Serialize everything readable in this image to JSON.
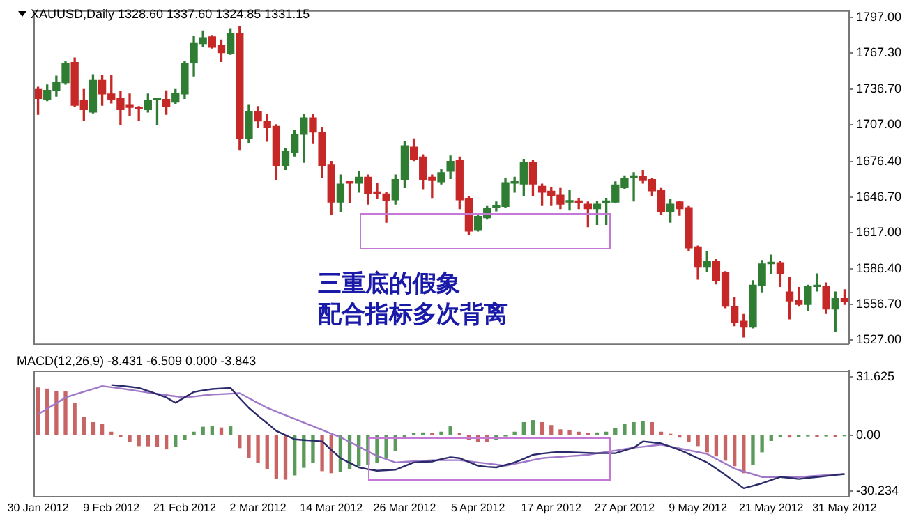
{
  "chart_data": [
    {
      "type": "candlestick",
      "title": "XAUUSD,Daily 1328.60 1337.60 1324.85 1331.15",
      "annotations": [
        "三重底的假象",
        "配合指标多次背离"
      ],
      "categories": [
        null,
        null,
        null,
        null,
        null,
        null,
        null,
        null,
        null,
        null,
        null,
        null,
        null,
        null,
        null,
        null,
        null,
        null,
        null,
        null,
        null,
        null,
        null,
        null,
        null,
        null,
        null,
        null,
        null,
        null,
        null,
        null,
        null,
        null,
        null,
        null,
        null,
        null,
        null,
        null,
        null,
        null,
        null,
        null,
        null,
        null,
        null,
        null,
        null,
        null,
        null,
        null,
        null,
        null,
        null,
        null,
        null,
        null,
        null,
        null,
        null,
        null,
        null,
        null,
        null,
        null,
        null,
        null,
        null,
        null,
        null,
        null,
        null,
        null,
        null,
        null,
        null,
        null,
        null,
        null,
        null,
        null,
        null,
        null,
        null,
        null,
        null,
        null,
        null
      ],
      "ohlc": [
        [
          1736.7,
          1738.6,
          1716.0,
          1729.2
        ],
        [
          1728.4,
          1740.5,
          1727.3,
          1736.0
        ],
        [
          1735.6,
          1748.0,
          1731.1,
          1742.4
        ],
        [
          1742.4,
          1760.1,
          1741.2,
          1758.6
        ],
        [
          1759.3,
          1763.1,
          1722.4,
          1723.5
        ],
        [
          1727.3,
          1736.7,
          1711.1,
          1719.8
        ],
        [
          1717.9,
          1749.2,
          1717.1,
          1744.3
        ],
        [
          1744.3,
          1748.8,
          1723.5,
          1733.0
        ],
        [
          1733.0,
          1748.8,
          1725.4,
          1728.4
        ],
        [
          1729.2,
          1734.8,
          1707.3,
          1719.8
        ],
        [
          1723.5,
          1733.0,
          1714.9,
          1721.7
        ],
        [
          1721.3,
          1722.4,
          1711.1,
          1720.9
        ],
        [
          1719.8,
          1733.0,
          1717.9,
          1727.3
        ],
        [
          1728.1,
          1729.2,
          1707.3,
          1728.4
        ],
        [
          1728.4,
          1735.6,
          1716.0,
          1722.4
        ],
        [
          1726.2,
          1736.7,
          1724.7,
          1733.7
        ],
        [
          1733.0,
          1760.1,
          1729.2,
          1758.2
        ],
        [
          1759.3,
          1781.2,
          1748.0,
          1775.2
        ],
        [
          1775.2,
          1785.7,
          1772.5,
          1780.0
        ],
        [
          1780.8,
          1781.9,
          1771.4,
          1772.1
        ],
        [
          1773.6,
          1778.2,
          1760.1,
          1767.6
        ],
        [
          1766.9,
          1787.6,
          1766.1,
          1783.8
        ],
        [
          1783.8,
          1789.5,
          1685.9,
          1696.0
        ],
        [
          1696.0,
          1723.5,
          1692.3,
          1717.9
        ],
        [
          1717.9,
          1722.4,
          1704.7,
          1710.4
        ],
        [
          1710.4,
          1716.0,
          1693.4,
          1704.7
        ],
        [
          1705.8,
          1707.3,
          1661.4,
          1672.7
        ],
        [
          1672.7,
          1687.0,
          1669.7,
          1684.7
        ],
        [
          1684.0,
          1702.8,
          1681.0,
          1699.1
        ],
        [
          1699.1,
          1716.0,
          1675.7,
          1713.0
        ],
        [
          1713.0,
          1716.0,
          1691.5,
          1701.0
        ],
        [
          1701.0,
          1704.7,
          1663.3,
          1672.7
        ],
        [
          1673.4,
          1676.5,
          1632.0,
          1642.5
        ],
        [
          1642.5,
          1665.2,
          1634.3,
          1657.6
        ],
        [
          1658.7,
          1659.5,
          1641.8,
          1658.4
        ],
        [
          1658.4,
          1668.2,
          1650.8,
          1663.3
        ],
        [
          1663.3,
          1665.2,
          1640.7,
          1649.3
        ],
        [
          1650.1,
          1658.4,
          1645.6,
          1649.8
        ],
        [
          1649.3,
          1650.8,
          1625.6,
          1643.7
        ],
        [
          1644.4,
          1665.2,
          1640.7,
          1661.4
        ],
        [
          1661.4,
          1693.4,
          1654.6,
          1689.6
        ],
        [
          1688.5,
          1695.3,
          1677.2,
          1678.3
        ],
        [
          1680.2,
          1682.1,
          1653.1,
          1661.4
        ],
        [
          1663.3,
          1665.2,
          1646.3,
          1660.6
        ],
        [
          1659.5,
          1669.7,
          1657.6,
          1667.0
        ],
        [
          1668.2,
          1681.0,
          1662.1,
          1676.5
        ],
        [
          1677.6,
          1680.2,
          1636.9,
          1644.4
        ],
        [
          1645.6,
          1647.1,
          1615.4,
          1618.1
        ],
        [
          1619.2,
          1631.3,
          1618.1,
          1630.5
        ],
        [
          1629.4,
          1638.8,
          1628.2,
          1636.9
        ],
        [
          1638.0,
          1642.5,
          1635.0,
          1638.4
        ],
        [
          1638.8,
          1662.1,
          1638.0,
          1658.7
        ],
        [
          1658.4,
          1663.3,
          1650.8,
          1658.7
        ],
        [
          1657.6,
          1678.3,
          1648.2,
          1675.7
        ],
        [
          1675.7,
          1677.2,
          1648.2,
          1657.6
        ],
        [
          1655.7,
          1657.6,
          1639.5,
          1650.8
        ],
        [
          1651.6,
          1654.6,
          1639.5,
          1648.2
        ],
        [
          1648.2,
          1653.9,
          1636.9,
          1640.7
        ],
        [
          1642.5,
          1652.0,
          1635.8,
          1642.8
        ],
        [
          1642.5,
          1645.6,
          1636.9,
          1642.2
        ],
        [
          1640.7,
          1642.5,
          1621.8,
          1636.9
        ],
        [
          1636.9,
          1643.3,
          1623.7,
          1640.7
        ],
        [
          1642.2,
          1645.6,
          1623.7,
          1642.5
        ],
        [
          1642.5,
          1659.5,
          1641.8,
          1656.9
        ],
        [
          1654.6,
          1664.4,
          1653.9,
          1662.1
        ],
        [
          1663.3,
          1667.0,
          1643.3,
          1663.6
        ],
        [
          1664.0,
          1668.9,
          1658.4,
          1660.6
        ],
        [
          1661.4,
          1662.1,
          1648.2,
          1652.0
        ],
        [
          1652.0,
          1653.9,
          1632.0,
          1634.3
        ],
        [
          1634.3,
          1644.4,
          1625.6,
          1640.7
        ],
        [
          1642.5,
          1643.3,
          1631.3,
          1636.9
        ],
        [
          1637.7,
          1638.8,
          1601.9,
          1604.1
        ],
        [
          1604.9,
          1605.6,
          1577.8,
          1587.9
        ],
        [
          1587.9,
          1601.1,
          1584.2,
          1592.8
        ],
        [
          1592.8,
          1594.3,
          1574.0,
          1576.6
        ],
        [
          1583.4,
          1584.2,
          1554.0,
          1555.2
        ],
        [
          1555.2,
          1562.7,
          1539.0,
          1541.6
        ],
        [
          1542.7,
          1548.4,
          1529.5,
          1537.8
        ],
        [
          1537.8,
          1576.6,
          1537.1,
          1572.9
        ],
        [
          1572.9,
          1593.6,
          1567.2,
          1590.6
        ],
        [
          1590.9,
          1598.1,
          1582.3,
          1591.2
        ],
        [
          1591.7,
          1592.8,
          1571.7,
          1582.3
        ],
        [
          1567.2,
          1579.3,
          1544.6,
          1559.7
        ],
        [
          1560.4,
          1571.0,
          1555.2,
          1556.7
        ],
        [
          1556.7,
          1572.9,
          1551.4,
          1571.7
        ],
        [
          1571.7,
          1582.3,
          1568.0,
          1572.0
        ],
        [
          1571.7,
          1574.7,
          1549.1,
          1552.9
        ],
        [
          1552.9,
          1567.2,
          1534.1,
          1561.6
        ],
        [
          1561.6,
          1569.1,
          1556.7,
          1558.9
        ]
      ],
      "colors": [
        "#c62828",
        "#2e7d32",
        "#2e7d32",
        "#2e7d32",
        "#c62828",
        "#c62828",
        "#2e7d32",
        "#c62828",
        "#c62828",
        "#c62828",
        "#c62828",
        "#c62828",
        "#2e7d32",
        "#2e7d32",
        "#c62828",
        "#2e7d32",
        "#2e7d32",
        "#2e7d32",
        "#2e7d32",
        "#c62828",
        "#c62828",
        "#2e7d32",
        "#c62828",
        "#2e7d32",
        "#c62828",
        "#c62828",
        "#c62828",
        "#2e7d32",
        "#2e7d32",
        "#2e7d32",
        "#c62828",
        "#c62828",
        "#c62828",
        "#2e7d32",
        "#c62828",
        "#2e7d32",
        "#c62828",
        "#c62828",
        "#c62828",
        "#2e7d32",
        "#2e7d32",
        "#c62828",
        "#c62828",
        "#c62828",
        "#2e7d32",
        "#2e7d32",
        "#c62828",
        "#c62828",
        "#2e7d32",
        "#2e7d32",
        "#2e7d32",
        "#2e7d32",
        "#2e7d32",
        "#2e7d32",
        "#c62828",
        "#c62828",
        "#c62828",
        "#c62828",
        "#2e7d32",
        "#c62828",
        "#c62828",
        "#2e7d32",
        "#2e7d32",
        "#2e7d32",
        "#2e7d32",
        "#2e7d32",
        "#c62828",
        "#c62828",
        "#c62828",
        "#2e7d32",
        "#c62828",
        "#c62828",
        "#c62828",
        "#2e7d32",
        "#c62828",
        "#c62828",
        "#c62828",
        "#c62828",
        "#2e7d32",
        "#2e7d32",
        "#2e7d32",
        "#c62828",
        "#c62828",
        "#c62828",
        "#2e7d32",
        "#2e7d32",
        "#c62828",
        "#2e7d32",
        "#c62828"
      ],
      "ylim": [
        1524,
        1803
      ],
      "yticks": [
        {
          "value": 1797,
          "label": "1797.00"
        },
        {
          "value": 1767.3,
          "label": "1767.30"
        },
        {
          "value": 1736.7,
          "label": "1736.70"
        },
        {
          "value": 1707,
          "label": "1707.00"
        },
        {
          "value": 1676.4,
          "label": "1676.40"
        },
        {
          "value": 1646.7,
          "label": "1646.70"
        },
        {
          "value": 1617,
          "label": "1617.00"
        },
        {
          "value": 1586.4,
          "label": "1586.40"
        },
        {
          "value": 1556.7,
          "label": "1556.70"
        },
        {
          "value": 1527,
          "label": "1527.00"
        }
      ],
      "tick_labels": "y",
      "grid": false,
      "legend": false
    },
    {
      "type": "bar",
      "title": "MACD(12,26,9) -8.431 -6.509 0.000 -3.843",
      "categories": [
        "30 Jan 2012",
        null,
        null,
        null,
        null,
        null,
        null,
        null,
        "9 Feb 2012",
        null,
        null,
        null,
        null,
        null,
        null,
        null,
        "21 Feb 2012",
        null,
        null,
        null,
        null,
        null,
        null,
        null,
        "2 Mar 2012",
        null,
        null,
        null,
        null,
        null,
        null,
        null,
        "14 Mar 2012",
        null,
        null,
        null,
        null,
        null,
        null,
        null,
        "26 Mar 2012",
        null,
        null,
        null,
        null,
        null,
        null,
        null,
        "5 Apr 2012",
        null,
        null,
        null,
        null,
        null,
        null,
        null,
        "17 Apr 2012",
        null,
        null,
        null,
        null,
        null,
        null,
        null,
        "27 Apr 2012",
        null,
        null,
        null,
        null,
        null,
        null,
        null,
        "9 May 2012",
        null,
        null,
        null,
        null,
        null,
        null,
        null,
        "21 May 2012",
        null,
        null,
        null,
        null,
        null,
        null,
        null,
        "31 May 2012"
      ],
      "series": [
        {
          "type": "bar",
          "values": [
            25.6,
            25.0,
            23.8,
            23.4,
            17.0,
            9.8,
            6.8,
            5.7,
            1.6,
            -0.7,
            -3.4,
            -5.7,
            -5.8,
            -6.1,
            -7.5,
            -6.1,
            -2.3,
            1.6,
            4.3,
            4.6,
            3.9,
            4.5,
            -6.8,
            -12.0,
            -14.8,
            -18.2,
            -23.6,
            -23.9,
            -21.6,
            -17.5,
            -14.8,
            -19.3,
            -20.4,
            -19.7,
            -18.2,
            -16.6,
            -15.9,
            -14.8,
            -12.5,
            -8.4,
            -1.1,
            1.1,
            1.2,
            1.0,
            1.6,
            4.5,
            1.1,
            -2.3,
            -3.4,
            -3.5,
            -2.3,
            -0.5,
            1.6,
            6.8,
            7.9,
            6.8,
            5.2,
            2.9,
            2.3,
            1.6,
            1.1,
            1.2,
            1.6,
            3.4,
            5.7,
            6.8,
            7.5,
            6.8,
            1.6,
            0.5,
            -1.1,
            -3.4,
            -5.7,
            -9.1,
            -11.3,
            -13.6,
            -16.6,
            -20.4,
            -15.9,
            -9.1,
            -2.9,
            -0.7,
            -1.1,
            -0.7,
            -0.5,
            -0.7,
            -0.5,
            -0.7,
            -0.4
          ],
          "colors": [
            "#c86464",
            "#c86464",
            "#c86464",
            "#c86464",
            "#c86464",
            "#c86464",
            "#c86464",
            "#c86464",
            "#c86464",
            "#c86464",
            "#c86464",
            "#c86464",
            "#c86464",
            "#c86464",
            "#c86464",
            "#5a9a5a",
            "#5a9a5a",
            "#5a9a5a",
            "#5a9a5a",
            "#5a9a5a",
            "#c86464",
            "#5a9a5a",
            "#c86464",
            "#c86464",
            "#c86464",
            "#c86464",
            "#c86464",
            "#c86464",
            "#5a9a5a",
            "#5a9a5a",
            "#5a9a5a",
            "#c86464",
            "#c86464",
            "#5a9a5a",
            "#5a9a5a",
            "#5a9a5a",
            "#5a9a5a",
            "#5a9a5a",
            "#5a9a5a",
            "#5a9a5a",
            "#5a9a5a",
            "#5a9a5a",
            "#5a9a5a",
            "#c86464",
            "#5a9a5a",
            "#5a9a5a",
            "#c86464",
            "#c86464",
            "#c86464",
            "#c86464",
            "#5a9a5a",
            "#5a9a5a",
            "#5a9a5a",
            "#5a9a5a",
            "#5a9a5a",
            "#c86464",
            "#c86464",
            "#c86464",
            "#c86464",
            "#c86464",
            "#c86464",
            "#5a9a5a",
            "#5a9a5a",
            "#5a9a5a",
            "#5a9a5a",
            "#5a9a5a",
            "#5a9a5a",
            "#c86464",
            "#c86464",
            "#c86464",
            "#c86464",
            "#c86464",
            "#c86464",
            "#c86464",
            "#c86464",
            "#c86464",
            "#c86464",
            "#c86464",
            "#5a9a5a",
            "#5a9a5a",
            "#5a9a5a",
            "#5a9a5a",
            "#c86464",
            "#5a9a5a",
            "#5a9a5a",
            "#c86464",
            "#5a9a5a",
            "#c86464",
            "#5a9a5a"
          ]
        },
        {
          "type": "line",
          "color": "#2b2b6b",
          "values": [
            null,
            null,
            null,
            null,
            null,
            null,
            null,
            null,
            27.2,
            26.8,
            26.2,
            25.6,
            24.0,
            22.2,
            20.4,
            17.5,
            20.5,
            23.4,
            24.3,
            25.0,
            25.3,
            25.6,
            20.0,
            14.8,
            10.5,
            6.5,
            2.3,
            0.0,
            -2.3,
            -2.7,
            -3.0,
            -3.4,
            -8.0,
            -12.5,
            -15.0,
            -17.5,
            -18.5,
            -19.3,
            -19.0,
            -18.8,
            -16.8,
            -14.8,
            -14.5,
            -14.3,
            -13.0,
            -12.0,
            -12.5,
            -14.5,
            -16.6,
            -17.2,
            -17.5,
            -16.2,
            -14.8,
            -12.8,
            -10.7,
            -10.0,
            -9.5,
            -9.1,
            -9.3,
            -9.5,
            -9.7,
            -9.8,
            -9.8,
            -9.8,
            -8.3,
            -6.8,
            -3.4,
            -3.9,
            -4.5,
            -6.2,
            -8.0,
            -10.2,
            -12.5,
            -14.8,
            -18.2,
            -21.6,
            -25.2,
            -28.8,
            -27.5,
            -26.1,
            -24.4,
            -22.7,
            -23.2,
            -23.8,
            -23.2,
            -22.7,
            -22.2,
            -21.6,
            -21.1
          ]
        },
        {
          "type": "line",
          "color": "#a078c8",
          "values": [
            11.3,
            14.3,
            17.3,
            20.4,
            22.0,
            23.5,
            25.0,
            26.6,
            26.0,
            25.3,
            24.6,
            23.8,
            23.1,
            22.4,
            21.7,
            21.0,
            20.4,
            20.9,
            21.5,
            22.0,
            22.2,
            22.5,
            22.7,
            20.1,
            17.4,
            14.8,
            12.8,
            10.8,
            8.8,
            6.8,
            4.8,
            2.8,
            0.8,
            -1.1,
            -3.7,
            -6.2,
            -8.8,
            -11.3,
            -13.0,
            -14.8,
            -14.5,
            -14.2,
            -13.9,
            -13.6,
            -13.6,
            -13.6,
            -13.6,
            -14.2,
            -14.8,
            -15.4,
            -16.0,
            -16.6,
            -15.6,
            -14.6,
            -13.5,
            -12.5,
            -12.1,
            -11.8,
            -11.4,
            -11.1,
            -10.7,
            -9.9,
            -9.1,
            -8.4,
            -7.6,
            -6.8,
            -6.3,
            -5.7,
            -5.2,
            -6.2,
            -7.2,
            -8.2,
            -9.2,
            -10.2,
            -12.9,
            -15.5,
            -18.2,
            -19.7,
            -21.2,
            -22.7,
            -22.7,
            -22.7,
            -22.7,
            -22.7,
            -22.4,
            -22.0,
            -21.7,
            -21.4,
            -21.1
          ]
        }
      ],
      "ylim": [
        -33,
        35
      ],
      "yticks": [
        31.625,
        {
          "value": 0,
          "label": "0.00"
        },
        -30.234
      ],
      "grid": false,
      "legend": false,
      "marker": "none",
      "line_style": "solid"
    }
  ]
}
